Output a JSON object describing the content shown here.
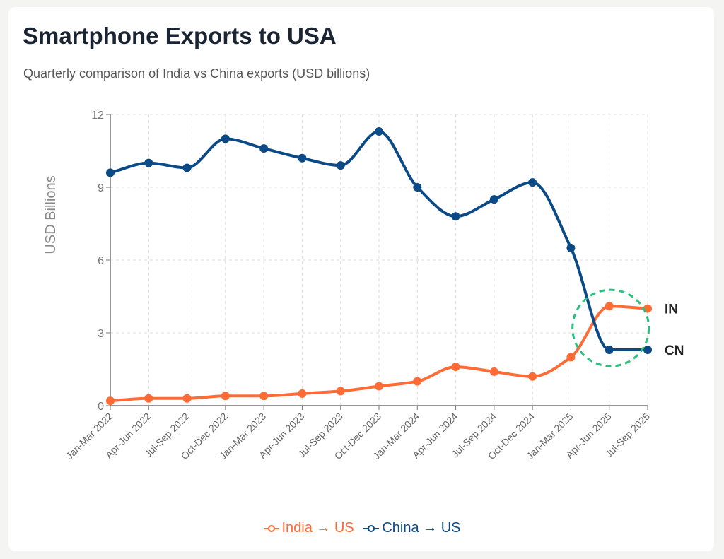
{
  "title": "Smartphone Exports to USA",
  "subtitle": "Quarterly comparison of India vs China exports (USD billions)",
  "chart_data": {
    "type": "line",
    "title": "Smartphone Exports to USA",
    "xlabel": "",
    "ylabel": "USD Billions",
    "ylim": [
      0,
      12
    ],
    "yticks": [
      "0",
      "3",
      "6",
      "9",
      "12"
    ],
    "grid": true,
    "legend_position": "bottom",
    "categories": [
      "Jan-Mar 2022",
      "Apr-Jun 2022",
      "Jul-Sep 2022",
      "Oct-Dec 2022",
      "Jan-Mar 2023",
      "Apr-Jun 2023",
      "Jul-Sep 2023",
      "Oct-Dec 2023",
      "Jan-Mar 2024",
      "Apr-Jun 2024",
      "Jul-Sep 2024",
      "Oct-Dec 2024",
      "Jan-Mar 2025",
      "Apr-Jun 2025",
      "Jul-Sep 2025"
    ],
    "series": [
      {
        "name": "India → US",
        "end_label": "IN",
        "color": "#ff6b35",
        "values": [
          0.2,
          0.3,
          0.3,
          0.4,
          0.4,
          0.5,
          0.6,
          0.8,
          1.0,
          1.6,
          1.4,
          1.2,
          2.0,
          4.1,
          4.0
        ]
      },
      {
        "name": "China → US",
        "end_label": "CN",
        "color": "#0b4a86",
        "values": [
          9.6,
          10.0,
          9.8,
          11.0,
          10.6,
          10.2,
          9.9,
          11.3,
          9.0,
          7.8,
          8.5,
          9.2,
          6.5,
          2.3,
          2.3
        ]
      }
    ],
    "annotation": {
      "type": "dashed-circle",
      "color": "#2bbf7e",
      "around_category": "Apr-Jun 2025"
    }
  }
}
